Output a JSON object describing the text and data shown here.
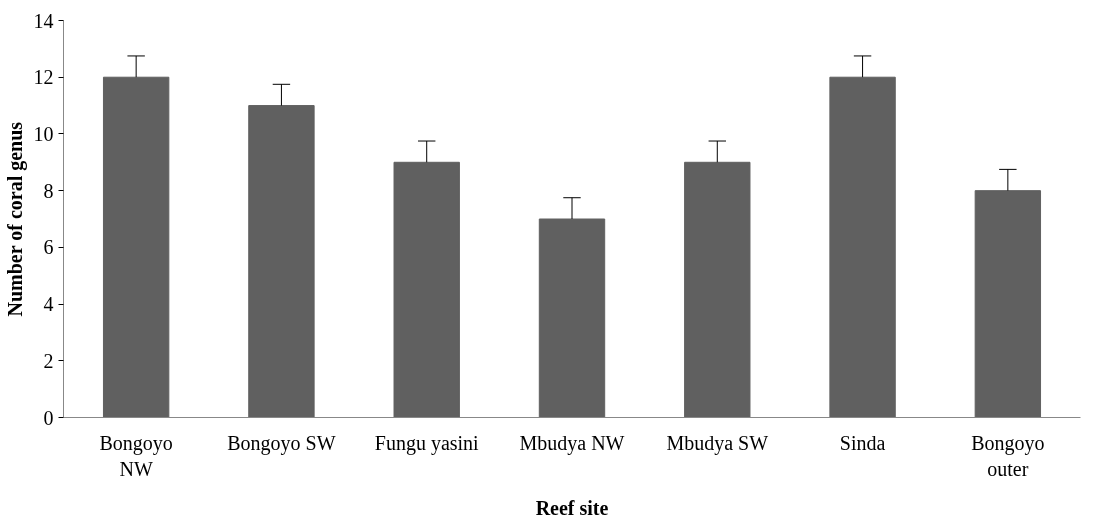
{
  "chart_data": {
    "type": "bar",
    "xlabel": "Reef site",
    "ylabel": "Number of coral genus",
    "categories": [
      "Bongoyo\nNW",
      "Bongoyo SW",
      "Fungu yasini",
      "Mbudya NW",
      "Mbudya SW",
      "Sinda",
      "Bongoyo\nouter"
    ],
    "values": [
      12,
      11,
      9,
      7,
      9,
      12,
      8
    ],
    "errors": [
      [
        12,
        12.75
      ],
      [
        11,
        11.75
      ],
      [
        9,
        9.75
      ],
      [
        7,
        7.75
      ],
      [
        9,
        9.75
      ],
      [
        12,
        12.75
      ],
      [
        8,
        8.75
      ]
    ],
    "color": "#606060",
    "ylim": [
      0,
      14
    ],
    "yticks": [
      0,
      2,
      4,
      6,
      8,
      10,
      12,
      14
    ],
    "grid": false
  }
}
